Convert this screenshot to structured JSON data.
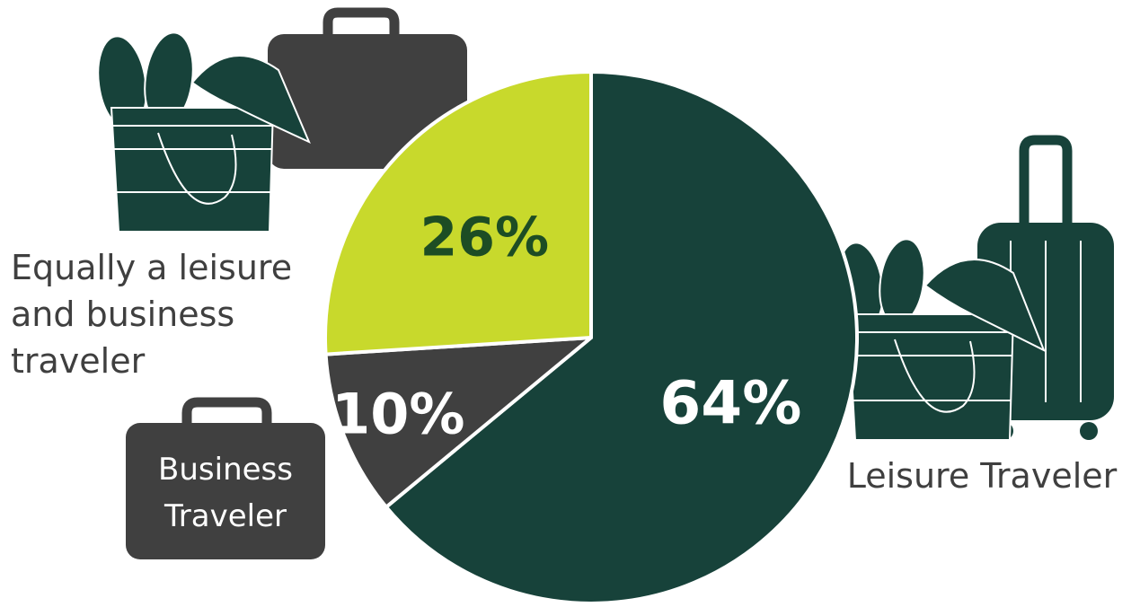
{
  "chart_data": {
    "type": "pie",
    "slices": [
      {
        "label": "Leisure Traveler",
        "value": 64,
        "value_label": "64%",
        "color": "#17423a",
        "text_color": "#ffffff"
      },
      {
        "label": "Business Traveler",
        "value": 10,
        "value_label": "10%",
        "color": "#404040",
        "text_color": "#ffffff"
      },
      {
        "label": "Equally a leisure and business traveler",
        "value": 26,
        "value_label": "26%",
        "color": "#c8d92c",
        "text_color": "#1d4d24"
      }
    ],
    "start_angle_deg": 0,
    "direction": "clockwise"
  },
  "labels": {
    "both_lines": [
      "Equally a leisure",
      "and business",
      "traveler"
    ],
    "business_lines": [
      "Business",
      "Traveler"
    ],
    "leisure": "Leisure Traveler"
  },
  "icons": [
    "beach-bag-icon",
    "briefcase-icon",
    "suitcase-icon"
  ],
  "colors": {
    "leisure": "#17423a",
    "business": "#404040",
    "both": "#c8d92c",
    "label_text": "#3f3f3f"
  }
}
